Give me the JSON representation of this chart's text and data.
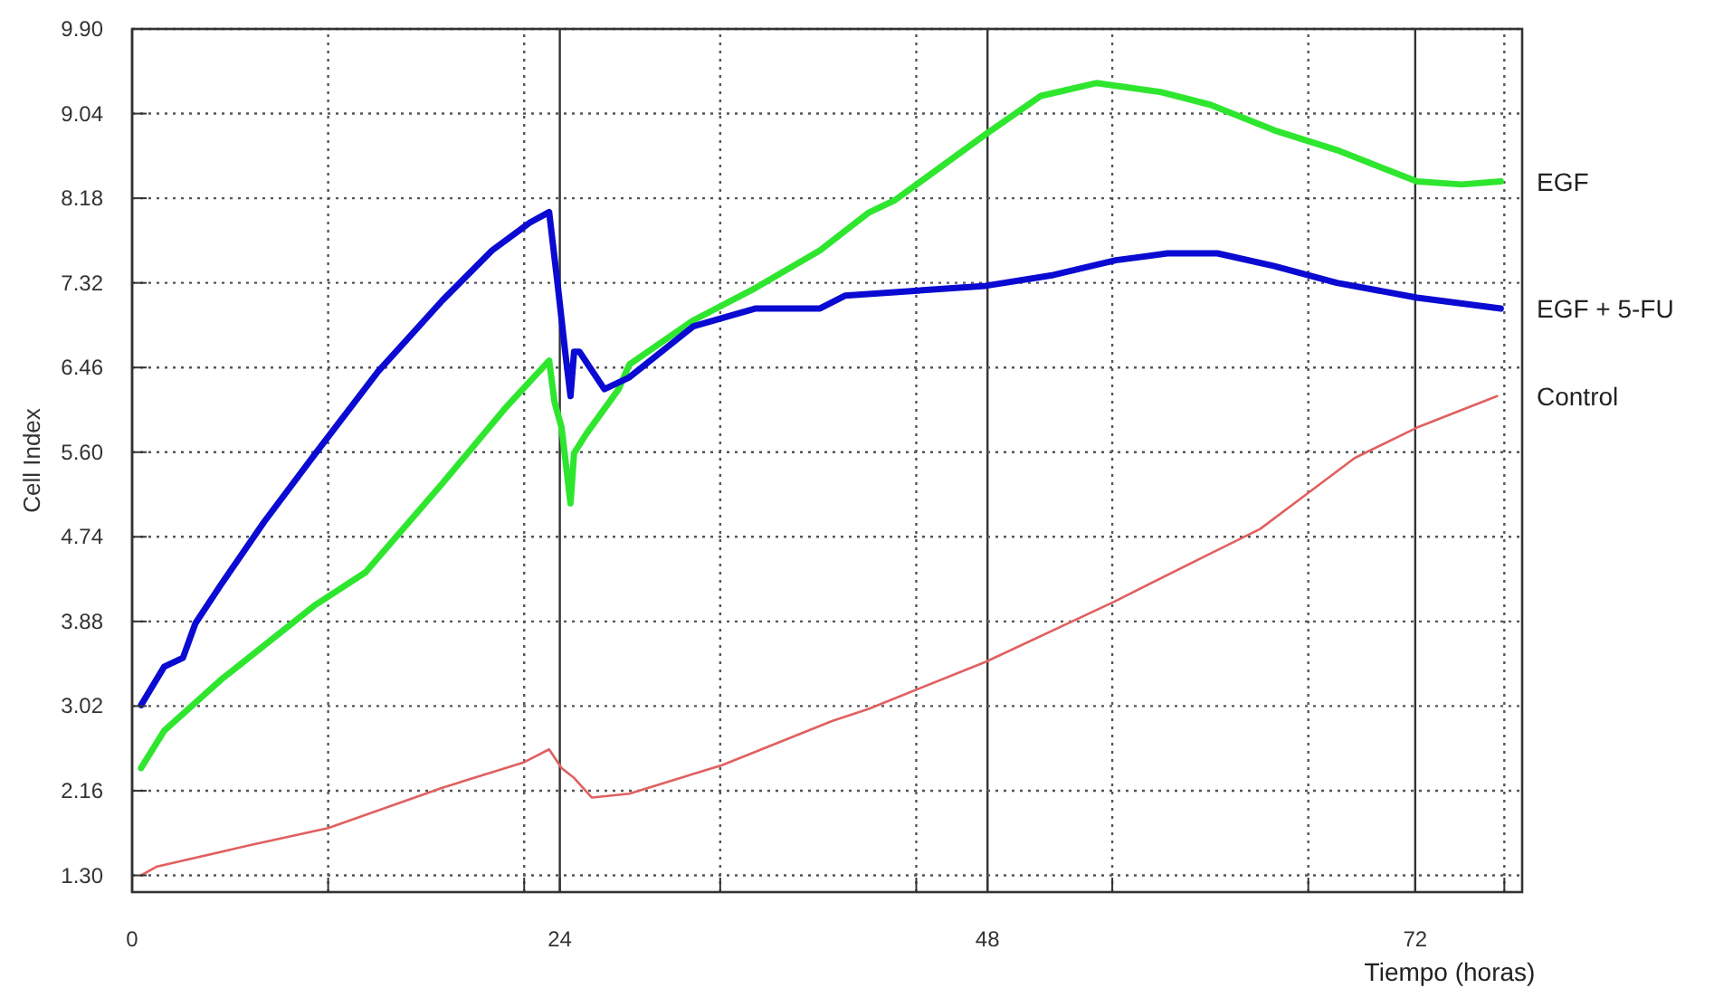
{
  "chart_data": {
    "type": "line",
    "xlabel": "Tiempo (horas)",
    "ylabel": "Cell Index",
    "xlim": [
      0,
      78
    ],
    "ylim": [
      1.13,
      9.9
    ],
    "xticks": [
      0,
      {
        "value": 11,
        "label": null
      },
      {
        "value": 22,
        "label": null
      },
      24,
      {
        "value": 33,
        "label": null
      },
      {
        "value": 44,
        "label": null
      },
      48,
      {
        "value": 55,
        "label": null
      },
      {
        "value": 66,
        "label": null
      },
      72,
      {
        "value": 77,
        "label": null
      }
    ],
    "yticks": [
      {
        "value": 1.3,
        "label": "1.30"
      },
      2.16,
      3.02,
      3.88,
      4.74,
      {
        "value": 5.6,
        "label": "5.60"
      },
      6.46,
      7.32,
      8.18,
      9.04,
      {
        "value": 9.9,
        "label": "9.90"
      }
    ],
    "grid": true,
    "marker": "none",
    "line_style": "solid",
    "series": [
      {
        "name": "EGF",
        "color": "#2ee62e",
        "x": [
          0.5,
          1.8,
          5.0,
          10.3,
          13.1,
          17.4,
          20.9,
          23.4,
          23.7,
          24.1,
          24.6,
          24.8,
          25.5,
          27.3,
          27.9,
          31.5,
          35.0,
          38.6,
          41.3,
          42.8,
          47.9,
          51.0,
          54.1,
          57.7,
          60.5,
          64.1,
          67.6,
          72.1,
          74.6,
          76.8
        ],
        "values": [
          2.39,
          2.77,
          3.29,
          4.05,
          4.38,
          5.28,
          6.04,
          6.53,
          6.11,
          5.85,
          5.08,
          5.59,
          5.79,
          6.24,
          6.49,
          6.94,
          7.27,
          7.65,
          8.03,
          8.16,
          8.83,
          9.22,
          9.35,
          9.26,
          9.13,
          8.87,
          8.67,
          8.35,
          8.32,
          8.35
        ]
      },
      {
        "name": "EGF + 5-FU",
        "color": "#0a0ad2",
        "x": [
          0.5,
          1.8,
          2.85,
          3.55,
          4.97,
          7.4,
          10.3,
          13.8,
          17.4,
          20.2,
          22.3,
          23.4,
          23.9,
          24.3,
          24.6,
          24.8,
          25.1,
          26.5,
          27.9,
          31.5,
          35.0,
          38.6,
          40.0,
          47.9,
          51.7,
          55.2,
          58.1,
          60.9,
          64.1,
          67.6,
          72.1,
          76.8
        ],
        "values": [
          3.03,
          3.42,
          3.51,
          3.86,
          4.25,
          4.89,
          5.59,
          6.42,
          7.14,
          7.65,
          7.93,
          8.04,
          7.27,
          6.62,
          6.17,
          6.62,
          6.62,
          6.24,
          6.36,
          6.88,
          7.06,
          7.06,
          7.19,
          7.29,
          7.4,
          7.55,
          7.62,
          7.62,
          7.49,
          7.32,
          7.17,
          7.06
        ]
      },
      {
        "name": "Control",
        "color": "#e06060",
        "x": [
          0.5,
          1.4,
          6.7,
          11.0,
          17.4,
          22.0,
          23.4,
          24.1,
          24.8,
          25.8,
          27.9,
          33.1,
          39.3,
          41.3,
          47.9,
          55.1,
          60.5,
          63.3,
          66.1,
          68.6,
          72.1,
          76.6
        ],
        "values": [
          1.3,
          1.39,
          1.61,
          1.78,
          2.19,
          2.45,
          2.58,
          2.39,
          2.29,
          2.09,
          2.13,
          2.42,
          2.87,
          2.99,
          3.47,
          4.08,
          4.57,
          4.82,
          5.2,
          5.54,
          5.85,
          6.17
        ]
      }
    ]
  }
}
